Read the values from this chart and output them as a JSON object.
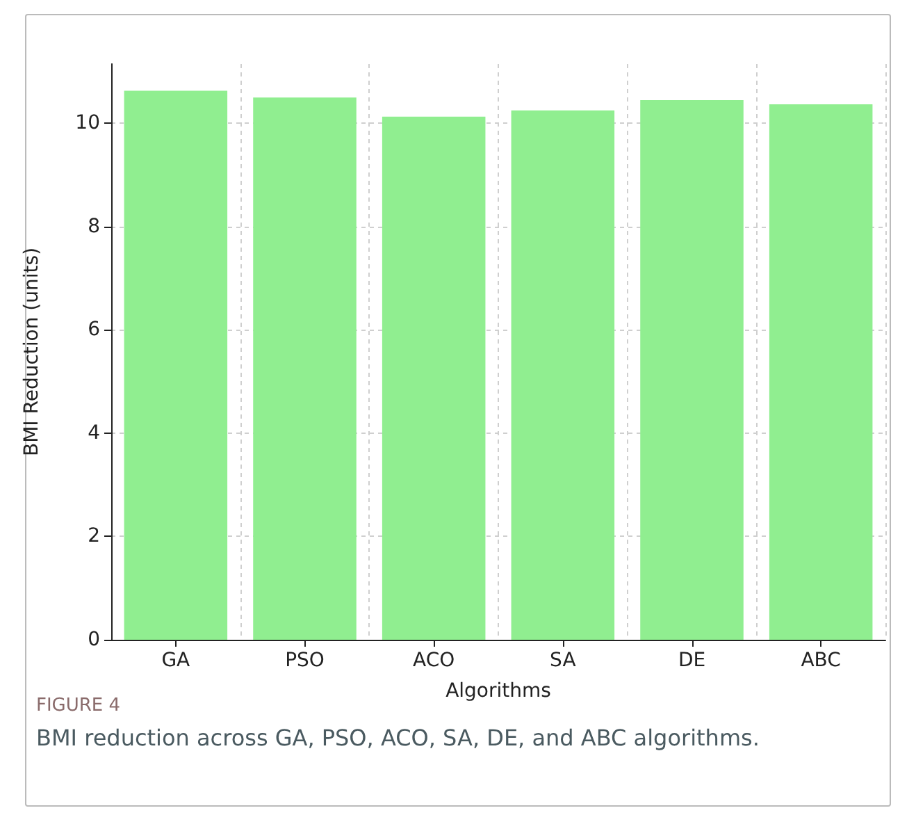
{
  "chart_data": {
    "type": "bar",
    "xlabel": "Algorithms",
    "ylabel": "BMI Reduction (units)",
    "categories": [
      "GA",
      "PSO",
      "ACO",
      "SA",
      "DE",
      "ABC"
    ],
    "values": [
      10.63,
      10.5,
      10.13,
      10.25,
      10.45,
      10.37
    ],
    "color": "#90ee90",
    "ylim": [
      0,
      11.15
    ],
    "yticks": [
      0,
      2,
      4,
      6,
      8,
      10
    ],
    "grid": true,
    "annotations": [
      "FIGURE 4",
      "BMI reduction across GA, PSO, ACO, SA, DE, and ABC algorithms."
    ]
  }
}
